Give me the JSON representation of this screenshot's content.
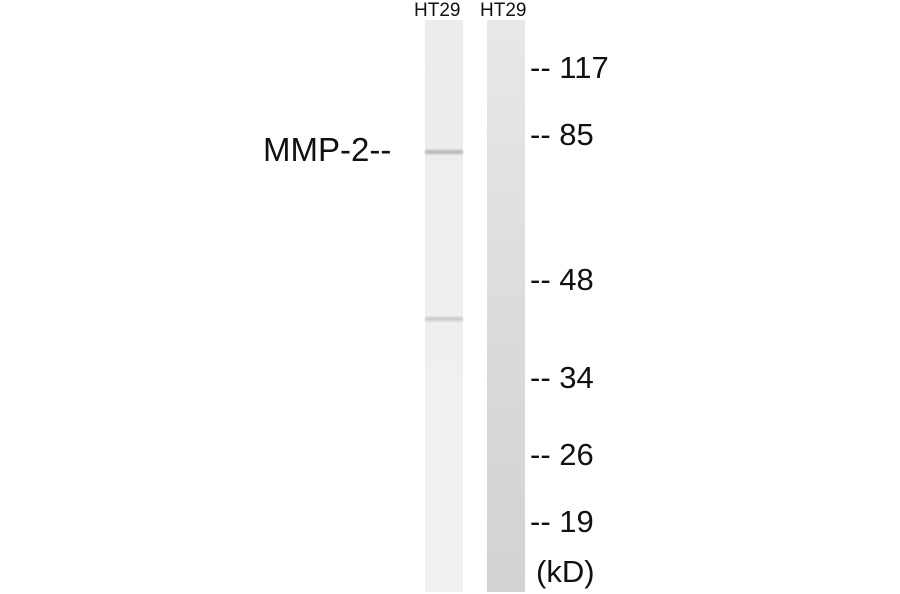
{
  "lanes": [
    {
      "label": "HT29"
    },
    {
      "label": "HT29"
    }
  ],
  "protein_label": "MMP-2--",
  "markers": [
    {
      "text": "-- 117",
      "kd": 117
    },
    {
      "text": "-- 85",
      "kd": 85
    },
    {
      "text": "-- 48",
      "kd": 48
    },
    {
      "text": "-- 34",
      "kd": 34
    },
    {
      "text": "-- 26",
      "kd": 26
    },
    {
      "text": "-- 19",
      "kd": 19
    }
  ],
  "unit": "(kD)"
}
